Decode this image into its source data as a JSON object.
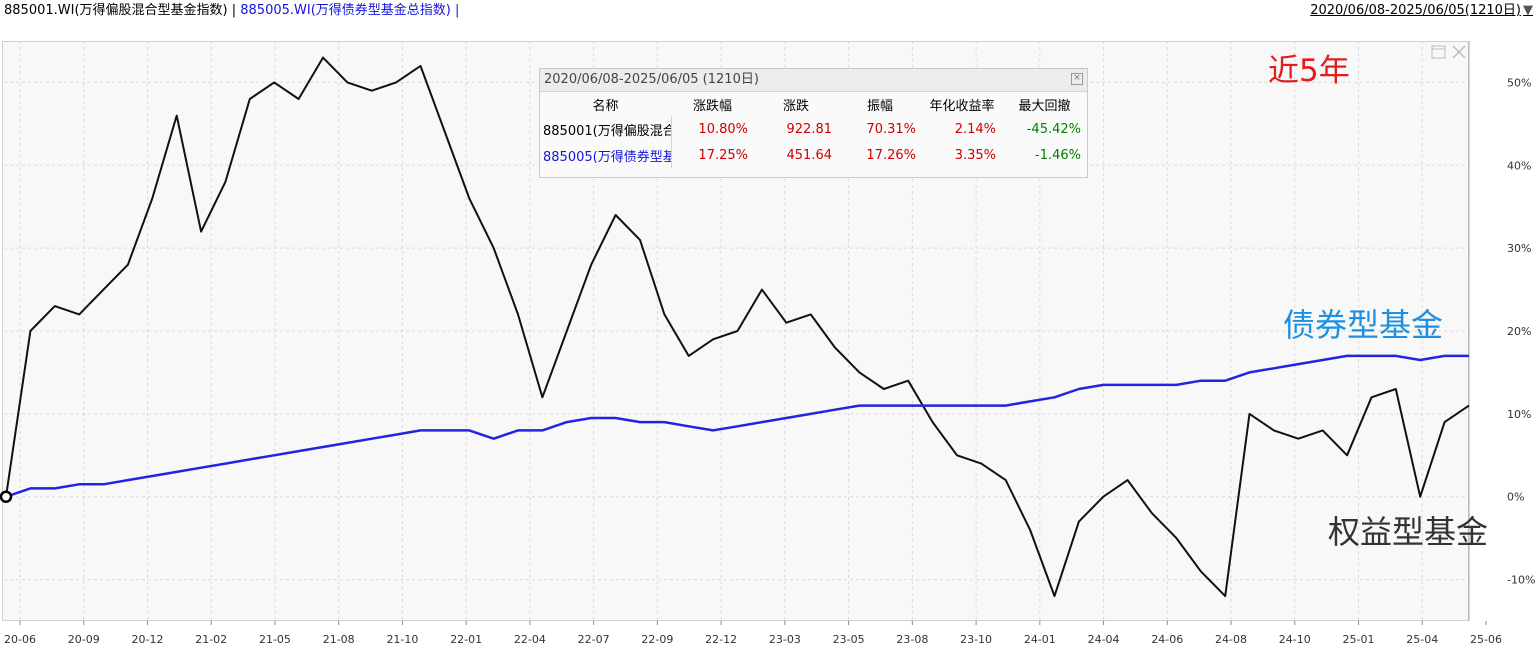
{
  "header": {
    "series1_label": "885001.WI(万得偏股混合型基金指数) |",
    "series2_label": "885005.WI(万得债券型基金总指数) |",
    "date_range": "2020/06/08-2025/06/05(1210日)",
    "dropdown_icon": "triangle-down-icon"
  },
  "table": {
    "title": "2020/06/08-2025/06/05 (1210日)",
    "close_icon": "close-icon",
    "columns": [
      "名称",
      "涨跌幅",
      "涨跌",
      "振幅",
      "年化收益率",
      "最大回撤"
    ],
    "rows": [
      {
        "name": "885001(万得偏股混合",
        "change_pct": "10.80%",
        "change": "922.81",
        "amplitude": "70.31%",
        "annual_return": "2.14%",
        "max_drawdown": "-45.42%",
        "color": "#000000"
      },
      {
        "name": "885005(万得债券型基",
        "change_pct": "17.25%",
        "change": "451.64",
        "amplitude": "17.26%",
        "annual_return": "3.35%",
        "max_drawdown": "-1.46%",
        "color": "#1414e0"
      }
    ]
  },
  "annotations": {
    "period": "近5年",
    "bond": "债券型基金",
    "equity": "权益型基金"
  },
  "colors": {
    "equity_line": "#111111",
    "bond_line": "#2424e0",
    "positive": "#d00000",
    "negative": "#008000",
    "period_label": "#e01e1e",
    "bond_label": "#1e90e0"
  },
  "chart_data": {
    "type": "line",
    "x_tick_labels": [
      "20-06",
      "20-09",
      "20-12",
      "21-02",
      "21-05",
      "21-08",
      "21-10",
      "22-01",
      "22-04",
      "22-07",
      "22-09",
      "22-12",
      "23-03",
      "23-05",
      "23-08",
      "23-10",
      "24-01",
      "24-04",
      "24-06",
      "24-08",
      "24-10",
      "25-01",
      "25-04",
      "25-06"
    ],
    "y_tick_labels": [
      "50%",
      "40%",
      "30%",
      "20%",
      "10%",
      "0%",
      "-10%"
    ],
    "y_ticks": [
      50,
      40,
      30,
      20,
      10,
      0,
      -10
    ],
    "ylim": [
      -15,
      55
    ],
    "grid": true,
    "y_axis_position": "right",
    "x": [
      "2020-06",
      "2020-07",
      "2020-08",
      "2020-09",
      "2020-10",
      "2020-11",
      "2020-12",
      "2021-01",
      "2021-02",
      "2021-03",
      "2021-04",
      "2021-05",
      "2021-06",
      "2021-07",
      "2021-08",
      "2021-09",
      "2021-10",
      "2021-11",
      "2021-12",
      "2022-01",
      "2022-02",
      "2022-03",
      "2022-04",
      "2022-05",
      "2022-06",
      "2022-07",
      "2022-08",
      "2022-09",
      "2022-10",
      "2022-11",
      "2022-12",
      "2023-01",
      "2023-02",
      "2023-03",
      "2023-04",
      "2023-05",
      "2023-06",
      "2023-07",
      "2023-08",
      "2023-09",
      "2023-10",
      "2023-11",
      "2023-12",
      "2024-01",
      "2024-02",
      "2024-03",
      "2024-04",
      "2024-05",
      "2024-06",
      "2024-07",
      "2024-08",
      "2024-09",
      "2024-10",
      "2024-11",
      "2024-12",
      "2025-01",
      "2025-02",
      "2025-03",
      "2025-04",
      "2025-05",
      "2025-06"
    ],
    "series": [
      {
        "values": [
          0,
          20,
          23,
          22,
          25,
          28,
          36,
          46,
          32,
          38,
          48,
          50,
          48,
          53,
          50,
          49,
          50,
          52,
          44,
          36,
          30,
          22,
          12,
          20,
          28,
          34,
          31,
          22,
          17,
          19,
          20,
          25,
          21,
          22,
          18,
          15,
          13,
          14,
          9,
          5,
          4,
          2,
          -4,
          -12,
          -3,
          0,
          2,
          -2,
          -5,
          -9,
          -12,
          10,
          8,
          7,
          8,
          5,
          12,
          13,
          0,
          9,
          11
        ]
      },
      {
        "values": [
          0,
          1,
          1,
          1.5,
          1.5,
          2,
          2.5,
          3,
          3.5,
          4,
          4.5,
          5,
          5.5,
          6,
          6.5,
          7,
          7.5,
          8,
          8,
          8,
          7,
          8,
          8,
          9,
          9.5,
          9.5,
          9,
          9,
          8.5,
          8,
          8.5,
          9,
          9.5,
          10,
          10.5,
          11,
          11,
          11,
          11,
          11,
          11,
          11,
          11.5,
          12,
          13,
          13.5,
          13.5,
          13.5,
          13.5,
          14,
          14,
          15,
          15.5,
          16,
          16.5,
          17,
          17,
          17,
          16.5,
          17,
          17
        ]
      }
    ]
  }
}
